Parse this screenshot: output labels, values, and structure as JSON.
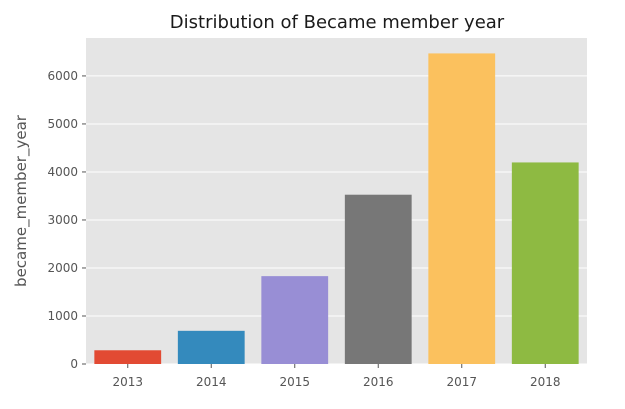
{
  "chart_data": {
    "type": "bar",
    "title": "Distribution of Became member year",
    "xlabel": "",
    "ylabel": "became_member_year",
    "categories": [
      "2013",
      "2014",
      "2015",
      "2016",
      "2017",
      "2018"
    ],
    "values": [
      286,
      691,
      1830,
      3526,
      6469,
      4198
    ],
    "colors": [
      "#E24A33",
      "#348ABD",
      "#988ED5",
      "#777777",
      "#FBC15E",
      "#8EBA42"
    ],
    "yticks": [
      0,
      1000,
      2000,
      3000,
      4000,
      5000,
      6000
    ],
    "ylim": [
      0,
      6790
    ],
    "grid": true,
    "plot_background": "#E5E5E5",
    "grid_color": "#FFFFFF"
  }
}
